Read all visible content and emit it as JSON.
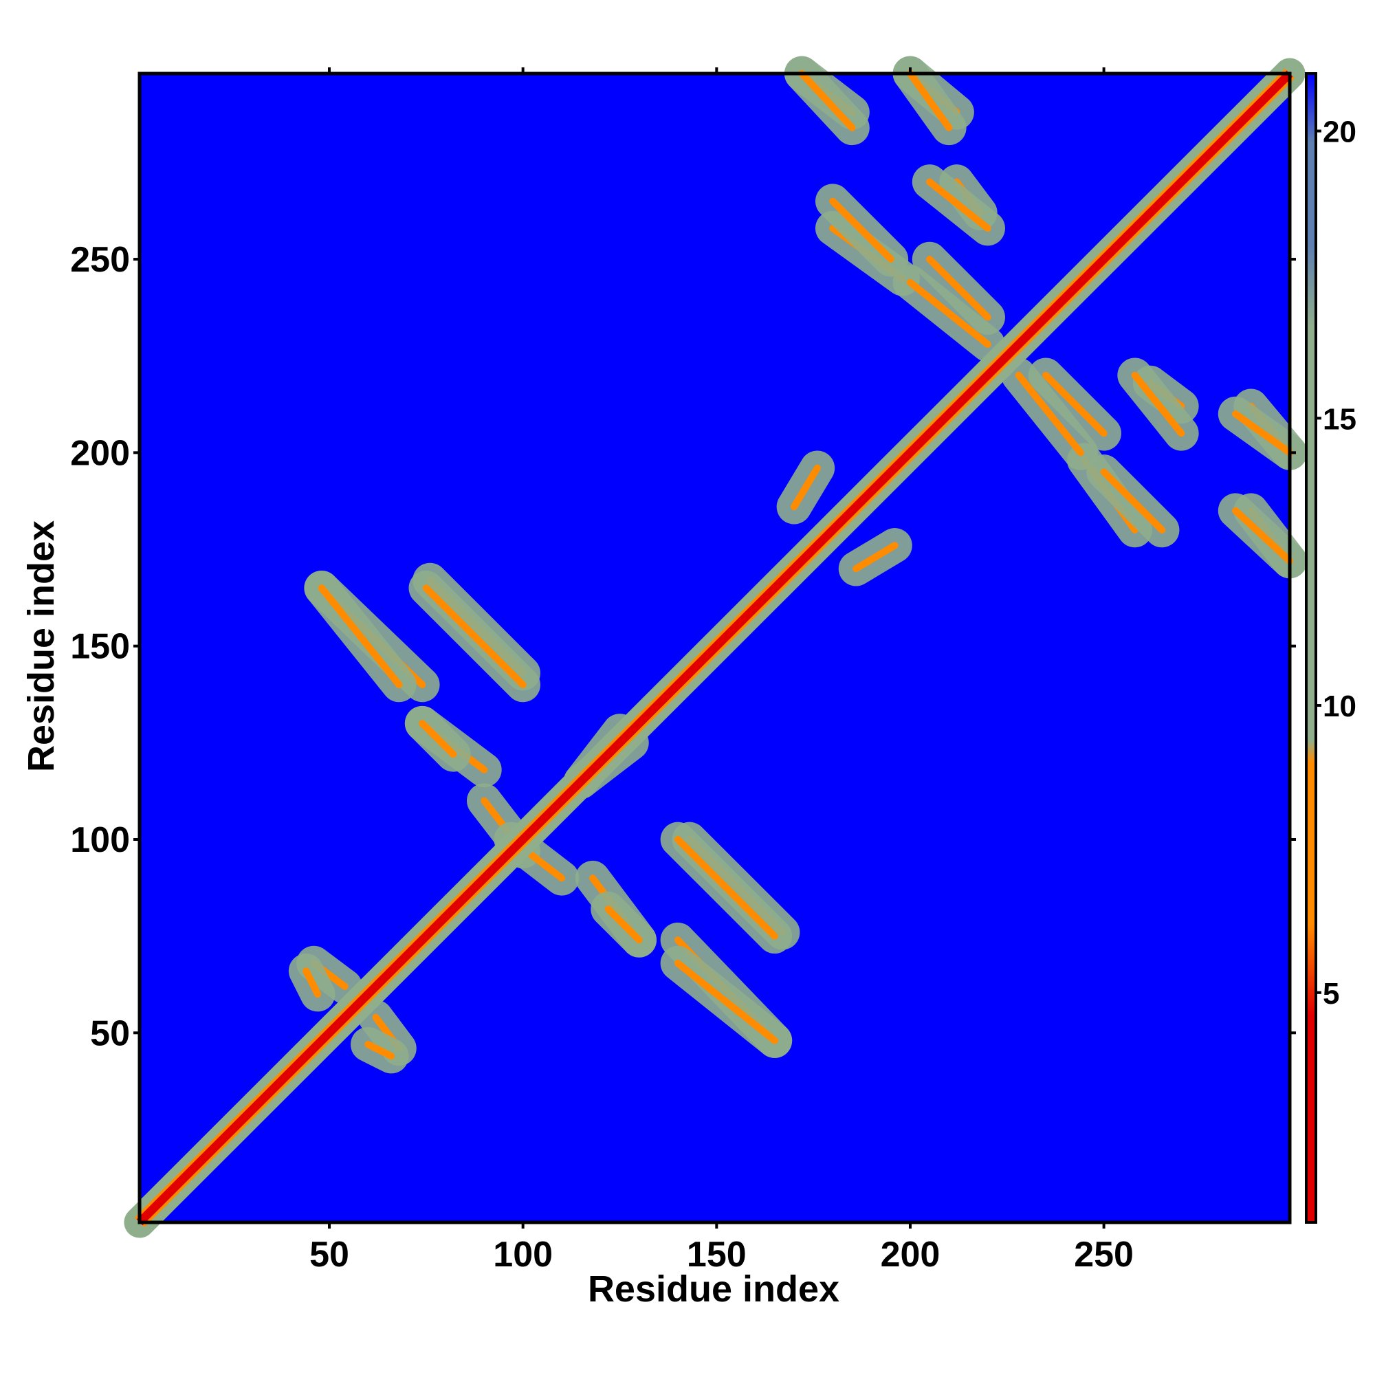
{
  "chart_data": {
    "type": "heatmap",
    "title": "",
    "xlabel": "Residue index",
    "ylabel": "Residue index",
    "xlim": [
      1,
      298
    ],
    "ylim": [
      1,
      298
    ],
    "x_ticks": [
      50,
      100,
      150,
      200,
      250
    ],
    "y_ticks": [
      50,
      100,
      150,
      200,
      250
    ],
    "colorbar": {
      "range": [
        1,
        21
      ],
      "ticks": [
        5,
        10,
        15,
        20
      ],
      "colors": [
        "#e00000",
        "#ff8c00",
        "#8fae8c",
        "#5f7fb0",
        "#0000ff"
      ]
    },
    "background_value": 21,
    "diagonal_value": 3,
    "contact_bands": [
      {
        "kind": "antiparallel",
        "x_range": [
          48,
          74
        ],
        "y_range": [
          165,
          140
        ]
      },
      {
        "kind": "antiparallel",
        "x_range": [
          76,
          100
        ],
        "y_range": [
          167,
          143
        ]
      },
      {
        "kind": "antiparallel",
        "x_range": [
          74,
          90
        ],
        "y_range": [
          130,
          118
        ]
      },
      {
        "kind": "antiparallel",
        "x_range": [
          90,
          100
        ],
        "y_range": [
          110,
          97
        ]
      },
      {
        "kind": "antiparallel",
        "x_range": [
          122,
          130
        ],
        "y_range": [
          82,
          74
        ]
      },
      {
        "kind": "antiparallel",
        "x_range": [
          140,
          165
        ],
        "y_range": [
          100,
          75
        ]
      },
      {
        "kind": "antiparallel",
        "x_range": [
          140,
          165
        ],
        "y_range": [
          68,
          48
        ]
      },
      {
        "kind": "antiparallel",
        "x_range": [
          46,
          54
        ],
        "y_range": [
          68,
          62
        ]
      },
      {
        "kind": "antiparallel",
        "x_range": [
          60,
          66
        ],
        "y_range": [
          47,
          44
        ]
      },
      {
        "kind": "antiparallel",
        "x_range": [
          180,
          198
        ],
        "y_range": [
          258,
          245
        ]
      },
      {
        "kind": "antiparallel",
        "x_range": [
          200,
          220
        ],
        "y_range": [
          244,
          228
        ]
      },
      {
        "kind": "antiparallel",
        "x_range": [
          212,
          218
        ],
        "y_range": [
          270,
          262
        ]
      },
      {
        "kind": "antiparallel",
        "x_range": [
          235,
          250
        ],
        "y_range": [
          220,
          205
        ]
      },
      {
        "kind": "antiparallel",
        "x_range": [
          250,
          265
        ],
        "y_range": [
          195,
          180
        ]
      },
      {
        "kind": "antiparallel",
        "x_range": [
          258,
          270
        ],
        "y_range": [
          220,
          205
        ]
      },
      {
        "kind": "antiparallel",
        "x_range": [
          172,
          185
        ],
        "y_range": [
          298,
          288
        ]
      },
      {
        "kind": "antiparallel",
        "x_range": [
          200,
          212
        ],
        "y_range": [
          298,
          288
        ]
      },
      {
        "kind": "antiparallel",
        "x_range": [
          284,
          298
        ],
        "y_range": [
          210,
          200
        ]
      },
      {
        "kind": "antiparallel",
        "x_range": [
          284,
          298
        ],
        "y_range": [
          185,
          172
        ]
      },
      {
        "kind": "parallel",
        "x_range": [
          115,
          128
        ],
        "y_range": [
          115,
          125
        ]
      },
      {
        "kind": "parallel",
        "x_range": [
          186,
          196
        ],
        "y_range": [
          170,
          176
        ]
      }
    ]
  }
}
